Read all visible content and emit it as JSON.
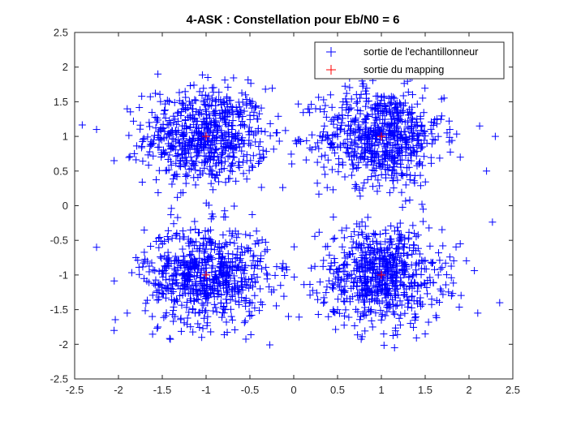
{
  "chart_data": {
    "type": "scatter",
    "title": "4-ASK : Constellation pour Eb/N0 = 6",
    "xlabel": "",
    "ylabel": "",
    "xlim": [
      -2.5,
      2.5
    ],
    "ylim": [
      -2.5,
      2.5
    ],
    "x_ticks": [
      "-2.5",
      "-2",
      "-1.5",
      "-1",
      "-0.5",
      "0",
      "0.5",
      "1",
      "1.5",
      "2",
      "2.5"
    ],
    "y_ticks": [
      "-2.5",
      "-2",
      "-1.5",
      "-1",
      "-0.5",
      "0",
      "0.5",
      "1",
      "1.5",
      "2",
      "2.5"
    ],
    "grid": false,
    "legend_position": "top-right",
    "colors": {
      "received": "#0000ff",
      "mapping": "#ff0000",
      "axes": "#262626"
    },
    "series": [
      {
        "name": "sortie de l'echantillonneur",
        "marker": "+",
        "color": "#0000ff",
        "note_clusters": "dense noisy clouds around each symbol, approx. std 0.35",
        "x": [
          -1.65,
          -1.32,
          -1.18,
          -0.72,
          -0.41,
          -1.05,
          -0.88,
          -1.42,
          -0.55,
          -1.25,
          -0.98,
          -1.6,
          -0.35,
          -0.78,
          -1.12,
          -2.25,
          -2.05,
          -1.55,
          -0.2,
          -0.62,
          0.62,
          0.88,
          1.15,
          1.42,
          0.35,
          1.6,
          0.78,
          1.05,
          1.28,
          0.5,
          0.95,
          1.75,
          0.42,
          1.35,
          1.9,
          2.3,
          2.2,
          1.1,
          0.7,
          0.25,
          -1.7,
          -1.3,
          -0.6,
          -0.85,
          -1.15,
          -0.45,
          -1.45,
          -0.95,
          -1.9,
          -2.25,
          -0.3,
          -1.55,
          -0.7,
          -1.05,
          -1.25,
          -0.15,
          -2.05,
          -1.8,
          -0.55,
          -1.0,
          0.6,
          0.85,
          1.2,
          1.45,
          0.3,
          1.65,
          0.9,
          1.05,
          1.35,
          0.5,
          1.8,
          2.1,
          2.35,
          0.2,
          1.5,
          0.75,
          1.15,
          1.0,
          0.45,
          1.9
        ],
        "y": [
          1.2,
          0.75,
          1.45,
          0.9,
          1.25,
          1.05,
          0.45,
          1.5,
          1.6,
          0.6,
          1.85,
          0.95,
          0.8,
          1.35,
          0.3,
          1.1,
          0.65,
          1.9,
          1.05,
          0.55,
          1.3,
          0.7,
          1.55,
          0.95,
          1.15,
          1.2,
          1.8,
          0.45,
          0.3,
          0.85,
          1.0,
          1.05,
          1.6,
          1.85,
          0.7,
          1.0,
          0.5,
          1.35,
          0.25,
          1.4,
          -0.8,
          -1.3,
          -1.1,
          -0.55,
          -1.5,
          -0.9,
          -1.2,
          -0.35,
          -1.55,
          -0.6,
          -1.0,
          -1.75,
          -1.65,
          -1.9,
          -0.45,
          -1.15,
          -1.8,
          -0.75,
          -1.45,
          -1.05,
          -0.85,
          -1.25,
          -0.6,
          -1.45,
          -1.1,
          -1.0,
          -1.75,
          -0.4,
          -0.7,
          -1.5,
          -1.3,
          -1.55,
          -1.4,
          -0.9,
          -1.85,
          -0.3,
          -2.05,
          -1.65,
          -1.2,
          -0.55
        ]
      },
      {
        "name": "sortie du mapping",
        "marker": "+",
        "color": "#ff0000",
        "x": [
          -1,
          1,
          -1,
          1
        ],
        "y": [
          1,
          1,
          -1,
          -1
        ]
      }
    ],
    "cluster_centers": [
      [
        -1,
        1
      ],
      [
        1,
        1
      ],
      [
        -1,
        -1
      ],
      [
        1,
        -1
      ]
    ],
    "cluster_spread": 0.35
  }
}
